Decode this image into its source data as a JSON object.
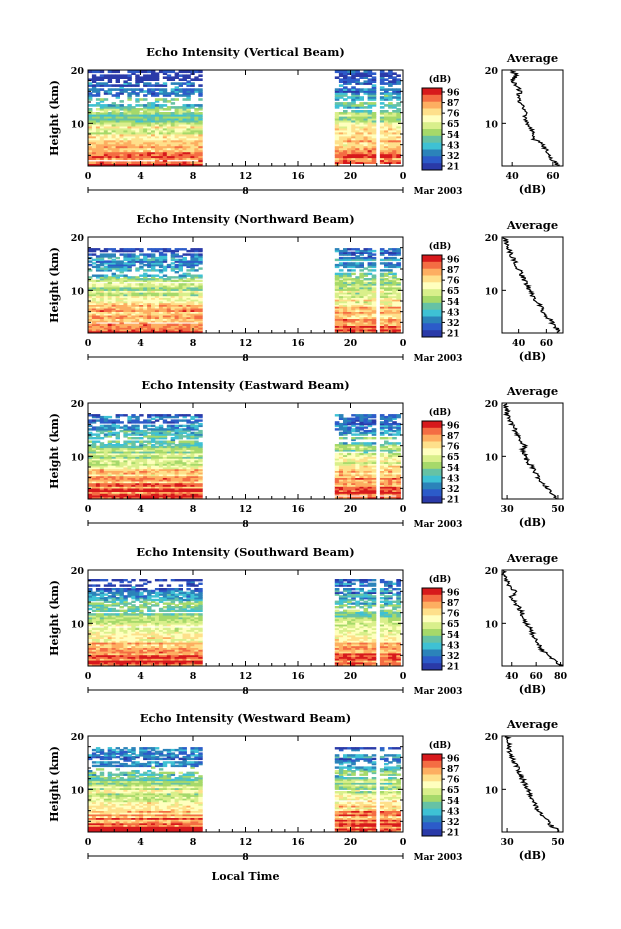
{
  "figure": {
    "x_axis_label": "Local Time",
    "date_label": "Mar 2003",
    "colorbar_unit": "(dB)",
    "colorbar_ticks": [
      "96",
      "87",
      "76",
      "65",
      "54",
      "43",
      "32",
      "21"
    ],
    "colorbar_colors": [
      "#d7191c",
      "#f46d43",
      "#fdae61",
      "#fee08b",
      "#ffffbf",
      "#d9ef8b",
      "#a6d96a",
      "#66c2a5",
      "#3ec1d4",
      "#2b83ba",
      "#2c5bc9",
      "#2a3aa8"
    ]
  },
  "chart_data": [
    {
      "type": "heatmap",
      "title": "Echo Intensity (Vertical Beam)",
      "ylabel": "Height (km)",
      "x_ticks": [
        "0",
        "4",
        "8",
        "12",
        "16",
        "20",
        "0"
      ],
      "y_ticks": [
        "20",
        "10"
      ],
      "day_label": "8",
      "data_time_ranges": [
        [
          0,
          8.7
        ],
        [
          18.8,
          23.8
        ]
      ],
      "ylim": [
        2,
        20
      ],
      "xlim": [
        0,
        24
      ],
      "profile": {
        "title": "Average",
        "xlabel": "(dB)",
        "x_ticks": [
          "40",
          "60"
        ],
        "xlim": [
          35,
          65
        ],
        "heights": [
          2,
          3,
          4,
          5,
          6,
          7,
          8,
          9,
          10,
          11,
          12,
          13,
          14,
          15,
          16,
          17,
          18,
          19,
          20
        ],
        "values": [
          63,
          60,
          58,
          57,
          55,
          51,
          50,
          49,
          47,
          46,
          48,
          45,
          44,
          43,
          44,
          42,
          40,
          42,
          40
        ]
      }
    },
    {
      "type": "heatmap",
      "title": "Echo Intensity (Northward Beam)",
      "ylabel": "Height (km)",
      "x_ticks": [
        "0",
        "4",
        "8",
        "12",
        "16",
        "20",
        "0"
      ],
      "y_ticks": [
        "20",
        "10"
      ],
      "day_label": "8",
      "data_time_ranges": [
        [
          0,
          8.7
        ],
        [
          18.8,
          23.8
        ]
      ],
      "ylim": [
        2,
        20
      ],
      "xlim": [
        0,
        24
      ],
      "profile": {
        "title": "Average",
        "xlabel": "(dB)",
        "x_ticks": [
          "40",
          "60"
        ],
        "xlim": [
          28,
          72
        ],
        "heights": [
          2,
          3,
          4,
          5,
          6,
          7,
          8,
          9,
          10,
          11,
          12,
          13,
          14,
          15,
          16,
          17,
          18,
          19,
          20
        ],
        "values": [
          70,
          67,
          64,
          61,
          58,
          56,
          53,
          50,
          48,
          46,
          44,
          42,
          40,
          38,
          36,
          34,
          33,
          31,
          30
        ]
      }
    },
    {
      "type": "heatmap",
      "title": "Echo Intensity (Eastward Beam)",
      "ylabel": "Height (km)",
      "x_ticks": [
        "0",
        "4",
        "8",
        "12",
        "16",
        "20",
        "0"
      ],
      "y_ticks": [
        "20",
        "10"
      ],
      "day_label": "8",
      "data_time_ranges": [
        [
          0,
          8.7
        ],
        [
          18.8,
          23.8
        ]
      ],
      "ylim": [
        2,
        20
      ],
      "xlim": [
        0,
        24
      ],
      "profile": {
        "title": "Average",
        "xlabel": "(dB)",
        "x_ticks": [
          "30",
          "50"
        ],
        "xlim": [
          28,
          52
        ],
        "heights": [
          2,
          3,
          4,
          5,
          6,
          7,
          8,
          9,
          10,
          11,
          12,
          13,
          14,
          15,
          16,
          17,
          18,
          19,
          20
        ],
        "values": [
          50,
          48,
          46,
          44,
          42,
          41,
          40,
          38,
          37,
          36,
          37,
          35,
          34,
          33,
          32,
          31,
          30,
          30,
          29
        ]
      }
    },
    {
      "type": "heatmap",
      "title": "Echo Intensity (Southward Beam)",
      "ylabel": "Height (km)",
      "x_ticks": [
        "0",
        "4",
        "8",
        "12",
        "16",
        "20",
        "0"
      ],
      "y_ticks": [
        "20",
        "10"
      ],
      "day_label": "8",
      "data_time_ranges": [
        [
          0,
          8.7
        ],
        [
          18.8,
          23.8
        ]
      ],
      "ylim": [
        2,
        20
      ],
      "xlim": [
        0,
        24
      ],
      "profile": {
        "title": "Average",
        "xlabel": "(dB)",
        "x_ticks": [
          "40",
          "60",
          "80"
        ],
        "xlim": [
          32,
          82
        ],
        "heights": [
          2,
          3,
          4,
          5,
          6,
          7,
          8,
          9,
          10,
          11,
          12,
          13,
          14,
          15,
          16,
          17,
          18,
          19,
          20
        ],
        "values": [
          80,
          75,
          70,
          65,
          62,
          60,
          57,
          55,
          52,
          50,
          48,
          46,
          42,
          40,
          43,
          38,
          36,
          34,
          33
        ]
      }
    },
    {
      "type": "heatmap",
      "title": "Echo Intensity (Westward Beam)",
      "ylabel": "Height (km)",
      "x_ticks": [
        "0",
        "4",
        "8",
        "12",
        "16",
        "20",
        "0"
      ],
      "y_ticks": [
        "20",
        "10"
      ],
      "day_label": "8",
      "data_time_ranges": [
        [
          0,
          8.7
        ],
        [
          18.8,
          23.8
        ]
      ],
      "ylim": [
        2,
        20
      ],
      "xlim": [
        0,
        24
      ],
      "profile": {
        "title": "Average",
        "xlabel": "(dB)",
        "x_ticks": [
          "30",
          "50"
        ],
        "xlim": [
          28,
          52
        ],
        "heights": [
          2,
          3,
          4,
          5,
          6,
          7,
          8,
          9,
          10,
          11,
          12,
          13,
          14,
          15,
          16,
          17,
          18,
          19,
          20
        ],
        "values": [
          51,
          48,
          46,
          44,
          42,
          41,
          40,
          39,
          38,
          37,
          36,
          35,
          34,
          33,
          32,
          31,
          31,
          30,
          30
        ]
      }
    }
  ]
}
